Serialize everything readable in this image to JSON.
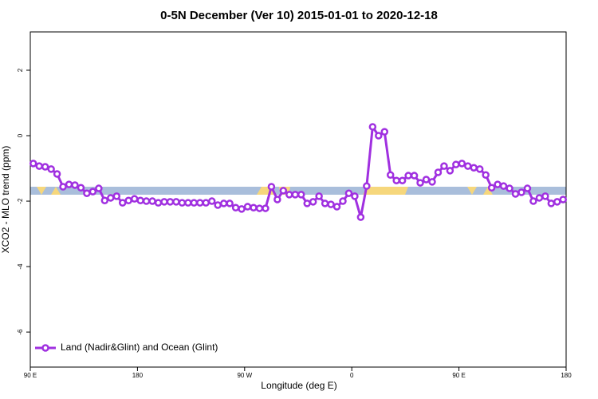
{
  "chart_data": {
    "type": "line",
    "title": "0-5N December (Ver 10)   2015-01-01 to 2020-12-18",
    "xlabel": "Longitude (deg E)",
    "ylabel": "XCO2 - MLO trend (ppm)",
    "x": [
      92.5,
      97.5,
      102.5,
      107.5,
      112.5,
      117.5,
      122.5,
      127.5,
      132.5,
      137.5,
      142.5,
      147.5,
      152.5,
      157.5,
      162.5,
      167.5,
      172.5,
      177.5,
      182.5,
      187.5,
      192.5,
      197.5,
      202.5,
      207.5,
      212.5,
      217.5,
      222.5,
      227.5,
      232.5,
      237.5,
      242.5,
      247.5,
      252.5,
      257.5,
      262.5,
      267.5,
      272.5,
      277.5,
      282.5,
      287.5,
      292.5,
      297.5,
      302.5,
      307.5,
      312.5,
      317.5,
      322.5,
      327.5,
      332.5,
      337.5,
      342.5,
      347.5,
      352.5,
      357.5,
      362.5,
      367.5,
      372.5,
      377.5,
      382.5,
      387.5,
      392.5,
      397.5,
      402.5,
      407.5,
      412.5,
      417.5,
      422.5,
      427.5,
      432.5,
      437.5,
      442.5,
      447.5,
      452.5,
      457.5,
      462.5,
      467.5,
      472.5,
      477.5,
      482.5,
      487.5,
      492.5,
      497.5,
      502.5,
      507.5,
      512.5,
      517.5,
      522.5,
      527.5,
      532.5,
      537.5
    ],
    "series": [
      {
        "name": "Land (Nadir&Glint) and Ocean (Glint)",
        "color": "#a030e0",
        "values": [
          -0.85,
          -0.93,
          -0.95,
          -1.02,
          -1.17,
          -1.56,
          -1.49,
          -1.51,
          -1.59,
          -1.76,
          -1.71,
          -1.61,
          -1.98,
          -1.9,
          -1.85,
          -2.05,
          -1.98,
          -1.93,
          -1.98,
          -2.0,
          -2.0,
          -2.05,
          -2.02,
          -2.02,
          -2.02,
          -2.05,
          -2.05,
          -2.05,
          -2.05,
          -2.05,
          -2.0,
          -2.12,
          -2.07,
          -2.07,
          -2.2,
          -2.24,
          -2.17,
          -2.2,
          -2.22,
          -2.22,
          -1.56,
          -1.95,
          -1.68,
          -1.8,
          -1.8,
          -1.8,
          -2.07,
          -2.02,
          -1.85,
          -2.07,
          -2.1,
          -2.17,
          -2.0,
          -1.76,
          -1.85,
          -2.49,
          -1.54,
          0.27,
          0.0,
          0.12,
          -1.2,
          -1.37,
          -1.37,
          -1.22,
          -1.22,
          -1.44,
          -1.34,
          -1.41,
          -1.12,
          -0.93,
          -1.07,
          -0.88,
          -0.85,
          -0.93,
          -0.98,
          -1.02,
          -1.2,
          -1.59,
          -1.49,
          -1.54,
          -1.61,
          -1.78,
          -1.73,
          -1.61,
          -2.0,
          -1.9,
          -1.85,
          -2.07,
          -2.02,
          -1.95
        ]
      }
    ],
    "xlim": [
      90,
      540
    ],
    "xticks": [
      {
        "value": 90,
        "label": "90 E"
      },
      180,
      {
        "value": 270,
        "label": "90 W"
      },
      {
        "value": 360,
        "label": "0"
      },
      {
        "value": 450,
        "label": "90 E"
      },
      {
        "value": 540,
        "label": "180"
      }
    ],
    "ylim": [
      -7.07,
      3.17
    ],
    "yticks": [
      -6,
      -4,
      -2,
      0,
      2
    ],
    "legend": "lower left"
  }
}
